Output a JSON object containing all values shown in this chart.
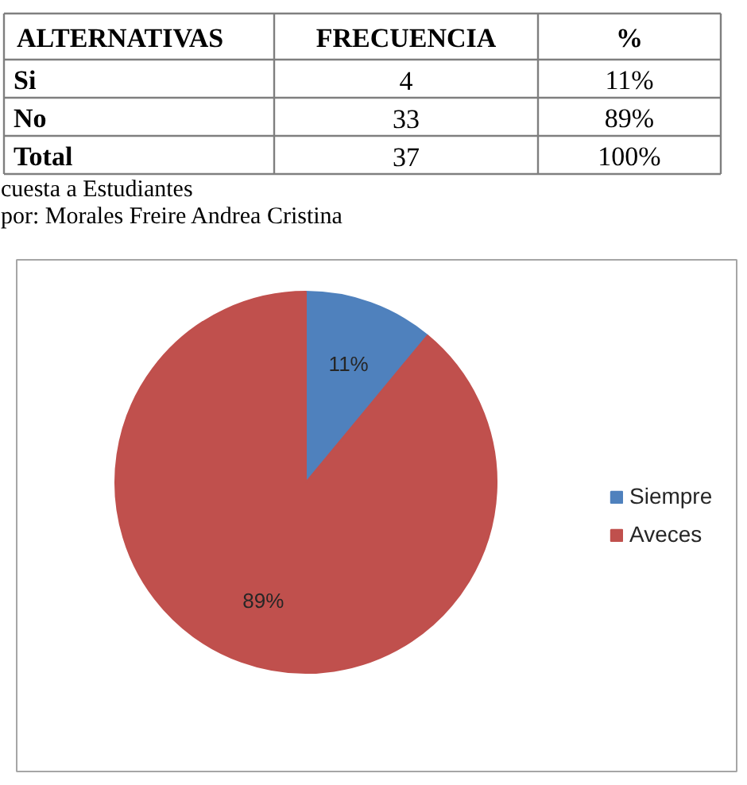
{
  "chart_data": [
    {
      "type": "other",
      "xlabel": "ALTERNATIVAS",
      "categories": [
        "Si",
        "No",
        "Total"
      ],
      "data_labels": true,
      "series": [
        {
          "name": "FRECUENCIA",
          "values": [
            4,
            33,
            37
          ]
        },
        {
          "name": "%",
          "values": [
            11,
            89,
            100
          ],
          "value_labels": [
            "11%",
            "89%",
            "100%"
          ]
        }
      ],
      "annotations": [
        "cuesta a Estudiantes",
        "por: Morales Freire Andrea Cristina"
      ]
    },
    {
      "type": "pie",
      "categories": [
        "Siempre",
        "Aveces"
      ],
      "values": [
        11,
        89
      ],
      "colors": [
        "#4f81bd",
        "#c0504d"
      ],
      "value_labels": [
        "11%",
        "89%"
      ],
      "legend": "right"
    }
  ]
}
